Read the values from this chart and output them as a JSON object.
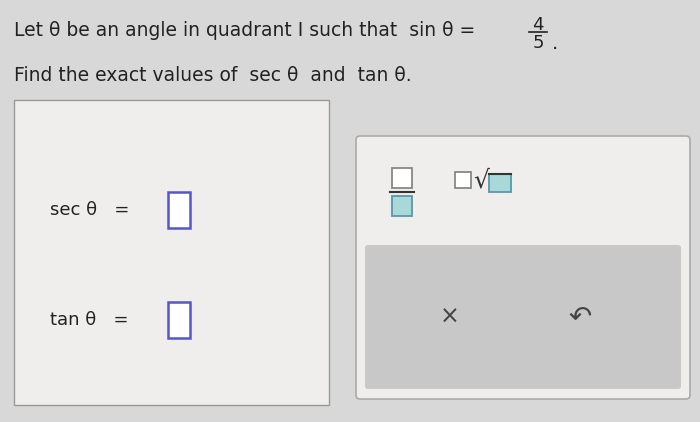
{
  "bg_color": "#d8d8d8",
  "left_box_color": "#f0eeec",
  "left_box_border": "#999999",
  "right_box_color": "#f0eeec",
  "right_box_border": "#aaaaaa",
  "input_box_color": "#ffffff",
  "input_box_border": "#5555cc",
  "frac_tool_top_color": "#ffffff",
  "frac_tool_top_border": "#888888",
  "frac_tool_bot_color": "#a8d8d8",
  "frac_tool_bot_border": "#5599aa",
  "sqrt_left_color": "#ffffff",
  "sqrt_left_border": "#888888",
  "sqrt_right_color": "#a8d8d8",
  "sqrt_right_border": "#5599aa",
  "bottom_panel_color": "#c8c8c8",
  "line1_main": "Let θ be an angle in quadrant I such that  sin θ = ",
  "fraction_num": "4",
  "fraction_den": "5",
  "line2": "Find the exact values of  sec θ  and  tan θ.",
  "label_sec": "sec θ   =",
  "label_tan": "tan θ   =",
  "x_symbol": "×",
  "undo_symbol": "↶",
  "text_color": "#222222"
}
